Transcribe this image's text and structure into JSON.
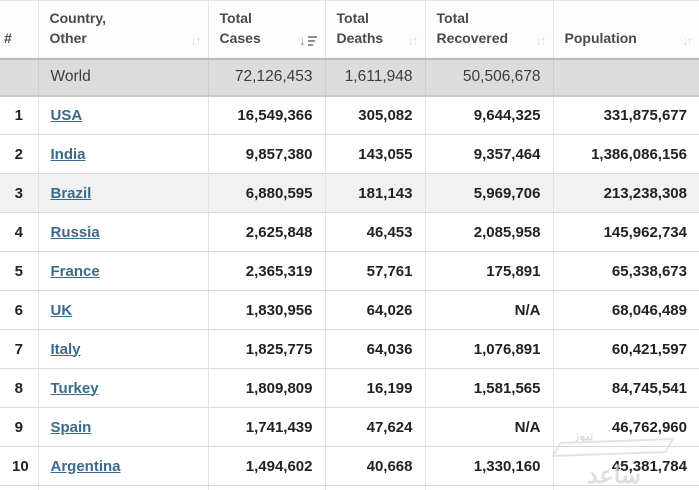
{
  "table": {
    "columns": [
      {
        "key": "rank",
        "label": "#",
        "label_lines": [
          "#"
        ],
        "sortable": false,
        "sort": null
      },
      {
        "key": "country",
        "label": "Country, Other",
        "label_lines": [
          "Country,",
          "Other"
        ],
        "sortable": true,
        "sort": "none"
      },
      {
        "key": "cases",
        "label": "Total Cases",
        "label_lines": [
          "Total",
          "Cases"
        ],
        "sortable": true,
        "sort": "desc"
      },
      {
        "key": "deaths",
        "label": "Total Deaths",
        "label_lines": [
          "Total",
          "Deaths"
        ],
        "sortable": true,
        "sort": "none"
      },
      {
        "key": "recovered",
        "label": "Total Recovered",
        "label_lines": [
          "Total",
          "Recovered"
        ],
        "sortable": true,
        "sort": "none"
      },
      {
        "key": "population",
        "label": "Population",
        "label_lines": [
          "Population"
        ],
        "sortable": true,
        "sort": "none"
      }
    ],
    "world_row": {
      "country": "World",
      "cases": "72,126,453",
      "deaths": "1,611,948",
      "recovered": "50,506,678",
      "population": ""
    },
    "rows": [
      {
        "rank": "1",
        "country": "USA",
        "cases": "16,549,366",
        "deaths": "305,082",
        "recovered": "9,644,325",
        "population": "331,875,677",
        "highlighted": false
      },
      {
        "rank": "2",
        "country": "India",
        "cases": "9,857,380",
        "deaths": "143,055",
        "recovered": "9,357,464",
        "population": "1,386,086,156",
        "highlighted": false
      },
      {
        "rank": "3",
        "country": "Brazil",
        "cases": "6,880,595",
        "deaths": "181,143",
        "recovered": "5,969,706",
        "population": "213,238,308",
        "highlighted": true
      },
      {
        "rank": "4",
        "country": "Russia",
        "cases": "2,625,848",
        "deaths": "46,453",
        "recovered": "2,085,958",
        "population": "145,962,734",
        "highlighted": false
      },
      {
        "rank": "5",
        "country": "France",
        "cases": "2,365,319",
        "deaths": "57,761",
        "recovered": "175,891",
        "population": "65,338,673",
        "highlighted": false
      },
      {
        "rank": "6",
        "country": "UK",
        "cases": "1,830,956",
        "deaths": "64,026",
        "recovered": "N/A",
        "population": "68,046,489",
        "highlighted": false
      },
      {
        "rank": "7",
        "country": "Italy",
        "cases": "1,825,775",
        "deaths": "64,036",
        "recovered": "1,076,891",
        "population": "60,421,597",
        "highlighted": false
      },
      {
        "rank": "8",
        "country": "Turkey",
        "cases": "1,809,809",
        "deaths": "16,199",
        "recovered": "1,581,565",
        "population": "84,745,541",
        "highlighted": false
      },
      {
        "rank": "9",
        "country": "Spain",
        "cases": "1,741,439",
        "deaths": "47,624",
        "recovered": "N/A",
        "population": "46,762,960",
        "highlighted": false
      },
      {
        "rank": "10",
        "country": "Argentina",
        "cases": "1,494,602",
        "deaths": "40,668",
        "recovered": "1,330,160",
        "population": "45,381,784",
        "highlighted": false
      }
    ]
  },
  "icons": {
    "sort_inactive": "↓↑",
    "sort_desc_arrow": "↓"
  },
  "colors": {
    "link": "#3a6a8c",
    "population": "#4f86ad",
    "world_row_bg": "#dcdcdc",
    "highlight_row_bg": "#f1f1f1",
    "header_text": "#4a4a4a",
    "number_text": "#222222",
    "sort_icon_inactive": "#dedede",
    "sort_icon_active": "#8e8e8e"
  },
  "watermark": {
    "text_main": "ساعد",
    "text_sub": "نیوز"
  }
}
